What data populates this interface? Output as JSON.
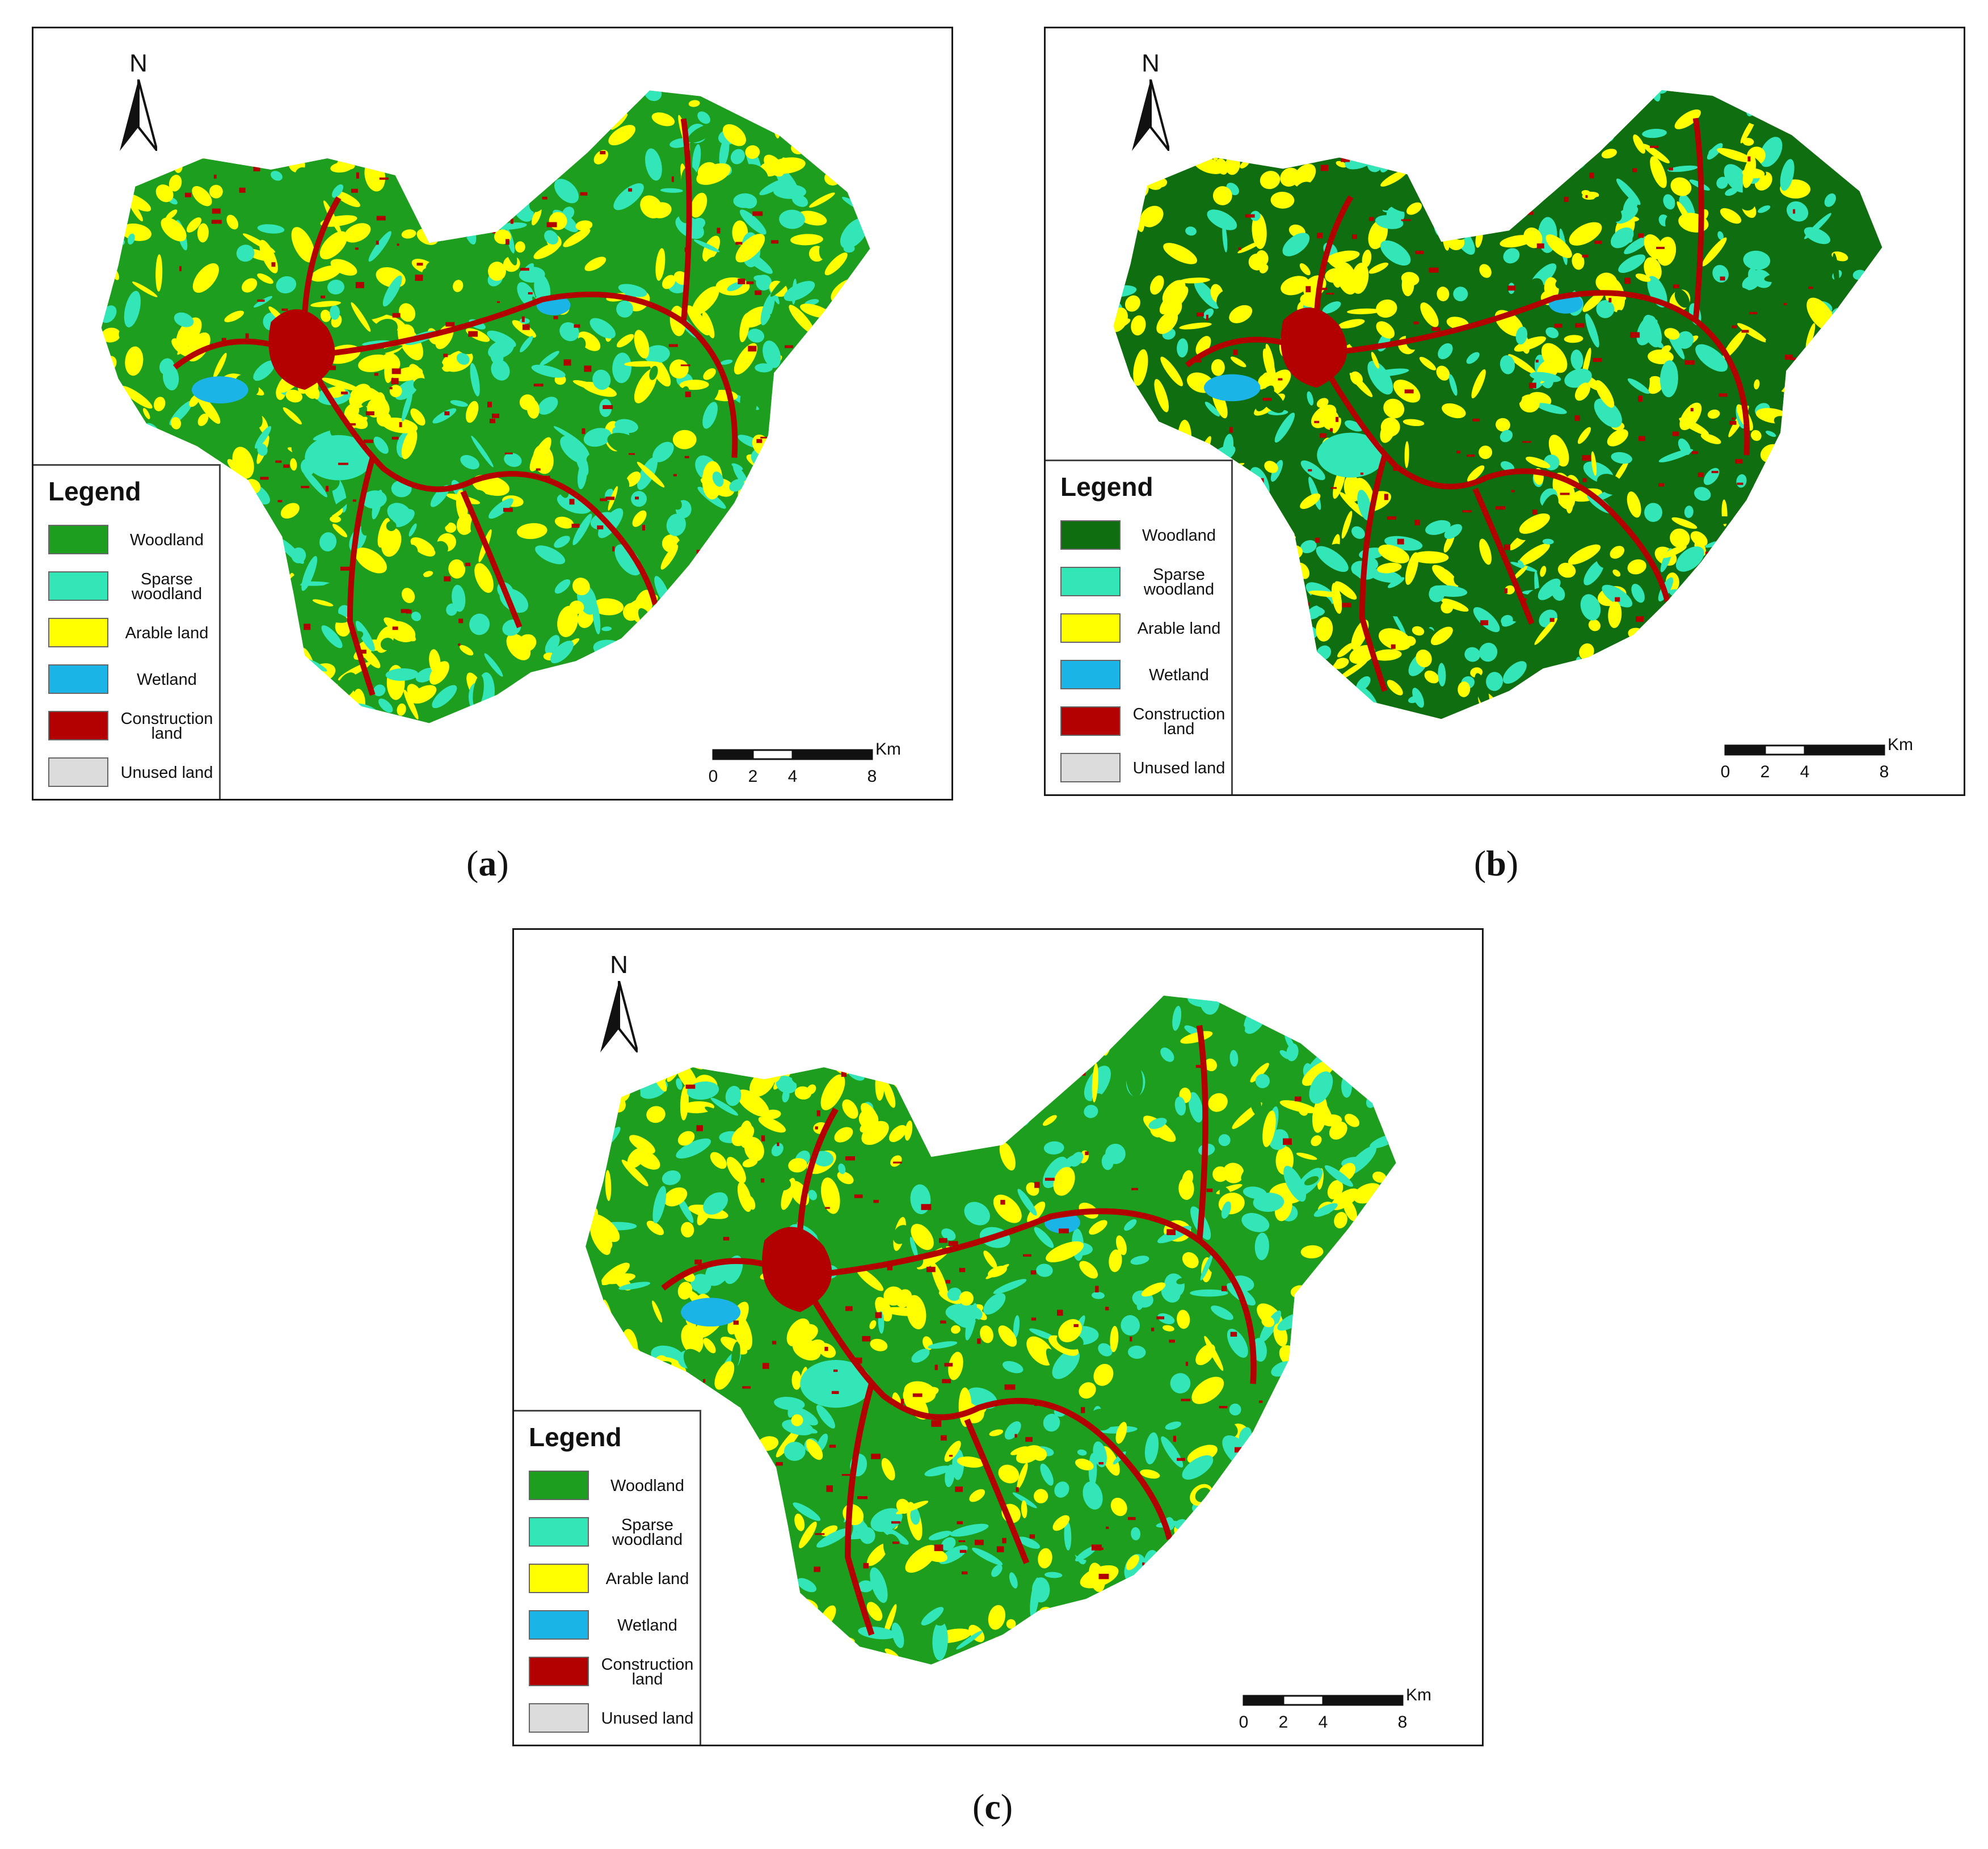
{
  "colors": {
    "woodland_a": "#1e9e1e",
    "woodland_b": "#0f6e0f",
    "woodland_c": "#1e9e1e",
    "sparse_woodland": "#33e6b8",
    "arable_land": "#ffff00",
    "wetland": "#1ab4e6",
    "construction_land": "#b30000",
    "unused_land": "#dcdcdc"
  },
  "north_label": "N",
  "legend": {
    "title": "Legend",
    "items": [
      {
        "label": "Woodland",
        "key": "woodland"
      },
      {
        "label": "Sparse woodland",
        "key": "sparse_woodland"
      },
      {
        "label": "Arable land",
        "key": "arable_land"
      },
      {
        "label": "Wetland",
        "key": "wetland"
      },
      {
        "label": "Construction land",
        "key": "construction_land"
      },
      {
        "label": "Unused land",
        "key": "unused_land"
      }
    ]
  },
  "scale": {
    "unit": "Km",
    "ticks": [
      "0",
      "2",
      "4",
      "8"
    ]
  },
  "panels": [
    {
      "id": "a",
      "caption": "a"
    },
    {
      "id": "b",
      "caption": "b"
    },
    {
      "id": "c",
      "caption": "c"
    }
  ]
}
